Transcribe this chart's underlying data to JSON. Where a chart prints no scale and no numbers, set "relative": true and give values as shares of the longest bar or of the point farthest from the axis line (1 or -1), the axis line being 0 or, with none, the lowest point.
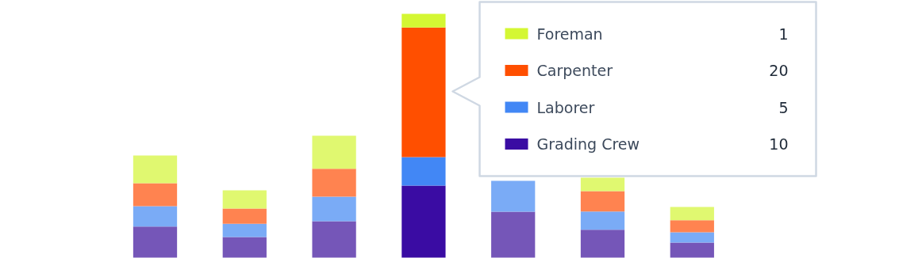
{
  "chart_data": {
    "type": "bar",
    "stacked": true,
    "relative": true,
    "legend": "top right",
    "categories": [
      null,
      null,
      null,
      null,
      null,
      null,
      null
    ],
    "series": [
      {
        "name": "Grading Crew",
        "color": "#3a0ca3",
        "colors": [
          "#7556b8",
          "#7556b8",
          "#7556b8",
          "#3a0ca3",
          "#7556b8",
          "#7556b8",
          "#7556b8"
        ],
        "values": [
          0.127,
          0.084,
          0.149,
          0.295,
          0.188,
          0.114,
          0.062
        ]
      },
      {
        "name": "Laborer",
        "color": "#4287f5",
        "colors": [
          "#7aabf6",
          "#7aabf6",
          "#7aabf6",
          "#4287f5",
          "#7aabf6",
          "#7aabf6",
          "#7aabf6"
        ],
        "values": [
          0.084,
          0.055,
          0.101,
          0.117,
          0.127,
          0.075,
          0.042
        ]
      },
      {
        "name": "Carpenter",
        "color": "#ff4f00",
        "colors": [
          "#ff8350",
          "#ff8350",
          "#ff8350",
          "#ff4f00",
          "#ff8350",
          "#ff8350",
          "#ff8350"
        ],
        "values": [
          0.094,
          0.062,
          0.114,
          0.532,
          null,
          0.084,
          0.049
        ]
      },
      {
        "name": "Foreman",
        "color": "#d4f733",
        "colors": [
          "#e0f870",
          "#e0f870",
          "#e0f870",
          "#d4f733",
          "#e0f870",
          "#e0f870",
          "#e0f870"
        ],
        "values": [
          0.114,
          0.075,
          0.136,
          0.056,
          null,
          0.055,
          0.055
        ]
      }
    ],
    "annotations": [
      "1",
      "20",
      "5",
      "10"
    ]
  }
}
